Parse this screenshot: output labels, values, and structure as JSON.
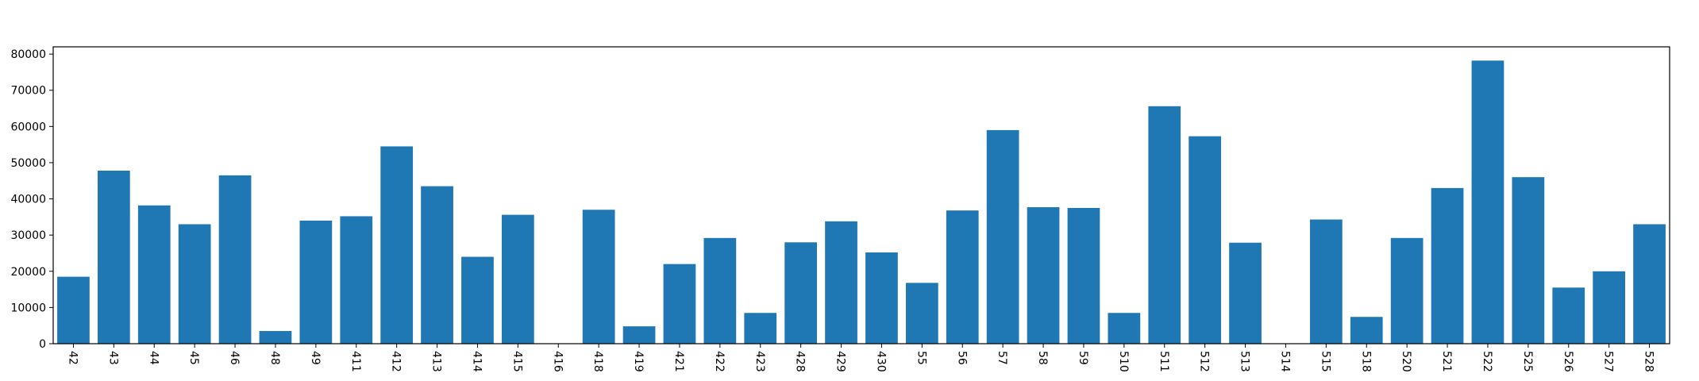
{
  "chart_data": {
    "type": "bar",
    "title": "",
    "xlabel": "",
    "ylabel": "",
    "ylim": [
      0,
      82000
    ],
    "yticks": [
      0,
      10000,
      20000,
      30000,
      40000,
      50000,
      60000,
      70000,
      80000
    ],
    "grid": false,
    "bar_color": "#1f77b4",
    "categories": [
      "42",
      "43",
      "44",
      "45",
      "46",
      "48",
      "49",
      "411",
      "412",
      "413",
      "414",
      "415",
      "416",
      "418",
      "419",
      "421",
      "422",
      "423",
      "428",
      "429",
      "430",
      "55",
      "56",
      "57",
      "58",
      "59",
      "510",
      "511",
      "512",
      "513",
      "514",
      "515",
      "518",
      "520",
      "521",
      "522",
      "525",
      "526",
      "527",
      "528"
    ],
    "values": [
      18500,
      47800,
      38200,
      33000,
      46500,
      3500,
      34000,
      35200,
      54500,
      43500,
      24000,
      35600,
      0,
      37000,
      4800,
      22000,
      29200,
      8500,
      28000,
      33800,
      25200,
      16800,
      36800,
      59000,
      37700,
      37500,
      8500,
      65600,
      57300,
      27900,
      0,
      34300,
      7400,
      29200,
      43000,
      78200,
      46000,
      15500,
      20000,
      33000
    ]
  }
}
